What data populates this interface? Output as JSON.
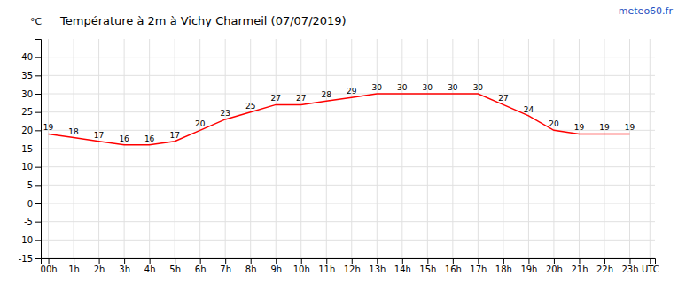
{
  "chart_data": {
    "type": "line",
    "title": "Température à 2m à Vichy Charmeil (07/07/2019)",
    "ylabel": "°C",
    "annotations": [
      "meteo60.fr"
    ],
    "x": [
      0,
      1,
      2,
      3,
      4,
      5,
      6,
      7,
      8,
      9,
      10,
      11,
      12,
      13,
      14,
      15,
      16,
      17,
      18,
      19,
      20,
      21,
      22,
      23
    ],
    "values": [
      19,
      18,
      17,
      16,
      16,
      17,
      20,
      23,
      25,
      27,
      27,
      28,
      29,
      30,
      30,
      30,
      30,
      30,
      27,
      24,
      20,
      19,
      19,
      19
    ],
    "color": "#ff0000",
    "xlim": [
      -0.3,
      24.0
    ],
    "xticks": [
      {
        "value": 0,
        "label": "00h"
      },
      {
        "value": 1,
        "label": "1h"
      },
      {
        "value": 2,
        "label": "2h"
      },
      {
        "value": 3,
        "label": "3h"
      },
      {
        "value": 4,
        "label": "4h"
      },
      {
        "value": 5,
        "label": "5h"
      },
      {
        "value": 6,
        "label": "6h"
      },
      {
        "value": 7,
        "label": "7h"
      },
      {
        "value": 8,
        "label": "8h"
      },
      {
        "value": 9,
        "label": "9h"
      },
      {
        "value": 10,
        "label": "10h"
      },
      {
        "value": 11,
        "label": "11h"
      },
      {
        "value": 12,
        "label": "12h"
      },
      {
        "value": 13,
        "label": "13h"
      },
      {
        "value": 14,
        "label": "14h"
      },
      {
        "value": 15,
        "label": "15h"
      },
      {
        "value": 16,
        "label": "16h"
      },
      {
        "value": 17,
        "label": "17h"
      },
      {
        "value": 18,
        "label": "18h"
      },
      {
        "value": 19,
        "label": "19h"
      },
      {
        "value": 20,
        "label": "20h"
      },
      {
        "value": 21,
        "label": "21h"
      },
      {
        "value": 22,
        "label": "22h"
      },
      {
        "value": 23,
        "label": "23h"
      },
      {
        "value": 23.8,
        "label": "UTC"
      }
    ],
    "ylim": [
      -15,
      45
    ],
    "yticks": [
      -15,
      -10,
      -5,
      0,
      5,
      10,
      15,
      20,
      25,
      30,
      35,
      40
    ],
    "grid": true,
    "data_labels": true
  }
}
